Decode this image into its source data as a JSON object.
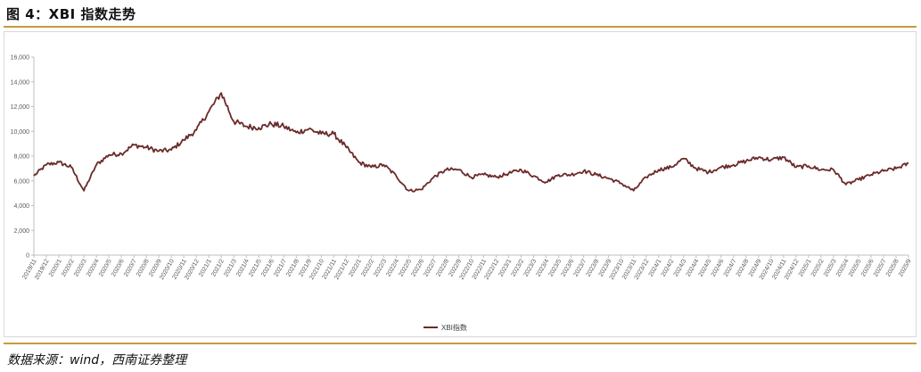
{
  "figure": {
    "title": "图 4：XBI 指数走势",
    "source": "数据来源：wind，西南证券整理"
  },
  "colors": {
    "line": "#6b2a2a",
    "axis": "#bfbfbf",
    "rule": "#c79b3c"
  },
  "chart_data": {
    "type": "line",
    "title": "",
    "xlabel": "",
    "ylabel": "",
    "ylim": [
      0,
      16000
    ],
    "yticks": [
      0,
      2000,
      4000,
      6000,
      8000,
      10000,
      12000,
      14000,
      16000
    ],
    "ytick_labels": [
      "0",
      "2,000",
      "4,000",
      "6,000",
      "8,000",
      "10,000",
      "12,000",
      "14,000",
      "16,000"
    ],
    "grid": false,
    "legend": "bottom-center",
    "x_tick_labels": [
      "2019/11",
      "2019/12",
      "2020/1",
      "2020/2",
      "2020/3",
      "2020/4",
      "2020/5",
      "2020/6",
      "2020/7",
      "2020/8",
      "2020/9",
      "2020/10",
      "2020/11",
      "2020/12",
      "2021/1",
      "2021/2",
      "2021/3",
      "2021/4",
      "2021/5",
      "2021/6",
      "2021/7",
      "2021/8",
      "2021/9",
      "2021/10",
      "2021/11",
      "2021/12",
      "2022/1",
      "2022/2",
      "2022/3",
      "2022/4",
      "2022/5",
      "2022/6",
      "2022/7",
      "2022/8",
      "2022/9",
      "2022/10",
      "2022/11",
      "2022/12",
      "2023/1",
      "2023/2",
      "2023/3",
      "2023/4",
      "2023/5",
      "2023/6",
      "2023/7",
      "2023/8",
      "2023/9",
      "2023/10",
      "2023/11",
      "2023/12",
      "2024/1",
      "2024/2",
      "2024/3",
      "2024/4",
      "2024/5",
      "2024/6",
      "2024/7",
      "2024/8",
      "2024/9",
      "2024/10",
      "2024/11",
      "2024/12",
      "2025/1",
      "2025/2",
      "2025/3",
      "2025/4",
      "2025/5",
      "2025/6",
      "2025/7",
      "2025/8",
      "2025/9"
    ],
    "series": [
      {
        "name": "XBI指数",
        "x": [
          "2019/11",
          "2019/12",
          "2020/1",
          "2020/2",
          "2020/3",
          "2020/4",
          "2020/5",
          "2020/6",
          "2020/7",
          "2020/8",
          "2020/9",
          "2020/10",
          "2020/11",
          "2020/12",
          "2021/1",
          "2021/2",
          "2021/3",
          "2021/4",
          "2021/5",
          "2021/6",
          "2021/7",
          "2021/8",
          "2021/9",
          "2021/10",
          "2021/11",
          "2021/12",
          "2022/1",
          "2022/2",
          "2022/3",
          "2022/4",
          "2022/5",
          "2022/6",
          "2022/7",
          "2022/8",
          "2022/9",
          "2022/10",
          "2022/11",
          "2022/12",
          "2023/1",
          "2023/2",
          "2023/3",
          "2023/4",
          "2023/5",
          "2023/6",
          "2023/7",
          "2023/8",
          "2023/9",
          "2023/10",
          "2023/11",
          "2023/12",
          "2024/1",
          "2024/2",
          "2024/3",
          "2024/4",
          "2024/5",
          "2024/6",
          "2024/7",
          "2024/8",
          "2024/9",
          "2024/10",
          "2024/11",
          "2024/12",
          "2025/1",
          "2025/2",
          "2025/3",
          "2025/4",
          "2025/5",
          "2025/6",
          "2025/7",
          "2025/8",
          "2025/9"
        ],
        "values": [
          6400,
          7300,
          7500,
          7100,
          5200,
          7300,
          8100,
          8200,
          8900,
          8700,
          8400,
          8500,
          9300,
          10100,
          11600,
          13100,
          10800,
          10400,
          10300,
          10600,
          10400,
          9900,
          10200,
          9800,
          9800,
          8700,
          7500,
          7100,
          7300,
          6400,
          5200,
          5300,
          6300,
          6900,
          6900,
          6300,
          6500,
          6300,
          6600,
          6900,
          6400,
          5900,
          6500,
          6500,
          6800,
          6500,
          6200,
          5800,
          5200,
          6300,
          6900,
          7100,
          7800,
          7000,
          6700,
          7100,
          7300,
          7600,
          7900,
          7700,
          7900,
          7100,
          7200,
          6900,
          6900,
          5700,
          6100,
          6500,
          6800,
          7000,
          7400
        ]
      }
    ]
  }
}
